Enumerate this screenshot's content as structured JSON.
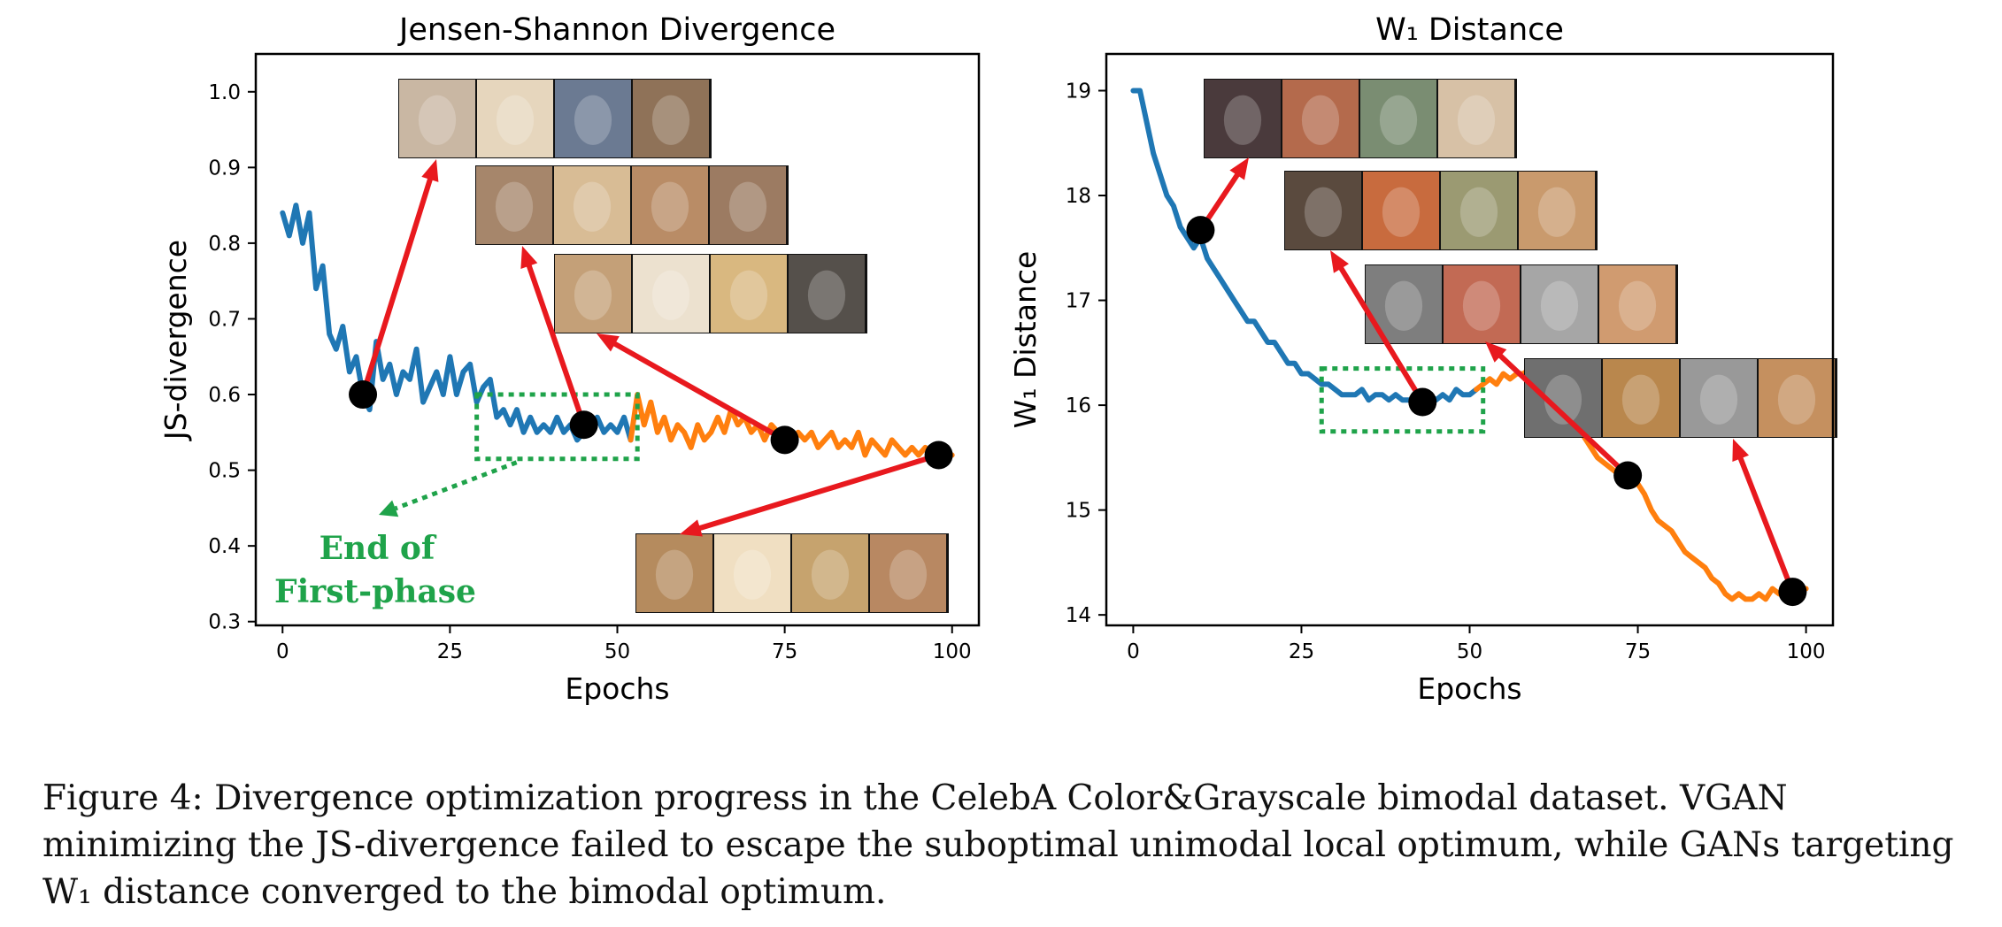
{
  "chart_data": [
    {
      "type": "line",
      "title": "Jensen-Shannon Divergence",
      "xlabel": "Epochs",
      "ylabel": "JS-divergence",
      "xlim": [
        -4,
        104
      ],
      "ylim": [
        0.295,
        1.05
      ],
      "xticks": [
        0,
        25,
        50,
        75,
        100
      ],
      "yticks": [
        0.3,
        0.4,
        0.5,
        0.6,
        0.7,
        0.8,
        0.9,
        1.0
      ],
      "ytick_labels": [
        "0.3",
        "0.4",
        "0.5",
        "0.6",
        "0.7",
        "0.8",
        "0.9",
        "1.0"
      ],
      "grid": false,
      "series": [
        {
          "color": "#1f77b4",
          "x": [
            0,
            1,
            2,
            3,
            4,
            5,
            6,
            7,
            8,
            9,
            10,
            11,
            12,
            13,
            14,
            15,
            16,
            17,
            18,
            19,
            20,
            21,
            22,
            23,
            24,
            25,
            26,
            27,
            28,
            29,
            30,
            31,
            32,
            33,
            34,
            35,
            36,
            37,
            38,
            39,
            40,
            41,
            42,
            43,
            44,
            45,
            46,
            47,
            48,
            49,
            50,
            51,
            52
          ],
          "y": [
            0.84,
            0.81,
            0.85,
            0.8,
            0.84,
            0.74,
            0.77,
            0.68,
            0.66,
            0.69,
            0.63,
            0.65,
            0.6,
            0.58,
            0.67,
            0.62,
            0.64,
            0.6,
            0.63,
            0.62,
            0.66,
            0.59,
            0.61,
            0.63,
            0.6,
            0.65,
            0.6,
            0.63,
            0.64,
            0.59,
            0.61,
            0.62,
            0.57,
            0.58,
            0.56,
            0.58,
            0.55,
            0.57,
            0.55,
            0.56,
            0.55,
            0.57,
            0.55,
            0.56,
            0.54,
            0.55,
            0.56,
            0.57,
            0.55,
            0.56,
            0.55,
            0.57,
            0.54
          ]
        },
        {
          "color": "#ff7f0e",
          "x": [
            52,
            53,
            54,
            55,
            56,
            57,
            58,
            59,
            60,
            61,
            62,
            63,
            64,
            65,
            66,
            67,
            68,
            69,
            70,
            71,
            72,
            73,
            74,
            75,
            76,
            77,
            78,
            79,
            80,
            81,
            82,
            83,
            84,
            85,
            86,
            87,
            88,
            89,
            90,
            91,
            92,
            93,
            94,
            95,
            96,
            97,
            98,
            99,
            100
          ],
          "y": [
            0.54,
            0.6,
            0.56,
            0.59,
            0.55,
            0.57,
            0.54,
            0.56,
            0.55,
            0.53,
            0.56,
            0.54,
            0.55,
            0.57,
            0.55,
            0.58,
            0.56,
            0.57,
            0.55,
            0.56,
            0.54,
            0.56,
            0.55,
            0.55,
            0.53,
            0.55,
            0.54,
            0.55,
            0.53,
            0.54,
            0.55,
            0.53,
            0.54,
            0.53,
            0.55,
            0.52,
            0.54,
            0.53,
            0.52,
            0.54,
            0.53,
            0.52,
            0.53,
            0.52,
            0.53,
            0.52,
            0.53,
            0.52,
            0.52
          ]
        }
      ],
      "markers": [
        {
          "x": 12,
          "y": 0.6
        },
        {
          "x": 45,
          "y": 0.56
        },
        {
          "x": 75,
          "y": 0.54
        },
        {
          "x": 98,
          "y": 0.52
        }
      ],
      "phase_box": {
        "x": [
          29,
          53
        ],
        "y": [
          0.515,
          0.6
        ]
      },
      "annotation_lines": [
        "End of",
        "First-phase"
      ]
    },
    {
      "type": "line",
      "title": "W₁ Distance",
      "xlabel": "Epochs",
      "ylabel": "W₁ Distance",
      "xlim": [
        -4,
        104
      ],
      "ylim": [
        13.9,
        19.35
      ],
      "xticks": [
        0,
        25,
        50,
        75,
        100
      ],
      "yticks": [
        14,
        15,
        16,
        17,
        18,
        19
      ],
      "ytick_labels": [
        "14",
        "15",
        "16",
        "17",
        "18",
        "19"
      ],
      "grid": false,
      "series": [
        {
          "color": "#1f77b4",
          "x": [
            0,
            1,
            2,
            3,
            4,
            5,
            6,
            7,
            8,
            9,
            10,
            11,
            12,
            13,
            14,
            15,
            16,
            17,
            18,
            19,
            20,
            21,
            22,
            23,
            24,
            25,
            26,
            27,
            28,
            29,
            30,
            31,
            32,
            33,
            34,
            35,
            36,
            37,
            38,
            39,
            40,
            41,
            42,
            43,
            44,
            45,
            46,
            47,
            48,
            49,
            50,
            51
          ],
          "y": [
            19.0,
            19.0,
            18.7,
            18.4,
            18.2,
            18.0,
            17.9,
            17.7,
            17.6,
            17.5,
            17.6,
            17.4,
            17.3,
            17.2,
            17.1,
            17.0,
            16.9,
            16.8,
            16.8,
            16.7,
            16.6,
            16.6,
            16.5,
            16.4,
            16.4,
            16.3,
            16.3,
            16.25,
            16.2,
            16.2,
            16.15,
            16.1,
            16.1,
            16.1,
            16.15,
            16.05,
            16.1,
            16.1,
            16.05,
            16.1,
            16.05,
            16.05,
            16.0,
            16.05,
            16.1,
            16.05,
            16.1,
            16.05,
            16.15,
            16.1,
            16.1,
            16.15
          ]
        },
        {
          "color": "#ff7f0e",
          "x": [
            51,
            52,
            53,
            54,
            55,
            56,
            57,
            58,
            59,
            60,
            61,
            62,
            63,
            64,
            65,
            66,
            67,
            68,
            69,
            70,
            71,
            72,
            73,
            74,
            75,
            76,
            77,
            78,
            79,
            80,
            81,
            82,
            83,
            84,
            85,
            86,
            87,
            88,
            89,
            90,
            91,
            92,
            93,
            94,
            95,
            96,
            97,
            98,
            99,
            100
          ],
          "y": [
            16.15,
            16.2,
            16.25,
            16.2,
            16.3,
            16.25,
            16.3,
            16.3,
            16.35,
            16.3,
            16.25,
            16.2,
            16.1,
            16.0,
            15.9,
            15.8,
            15.7,
            15.6,
            15.5,
            15.45,
            15.4,
            15.35,
            15.35,
            15.3,
            15.25,
            15.15,
            15.0,
            14.9,
            14.85,
            14.8,
            14.7,
            14.6,
            14.55,
            14.5,
            14.45,
            14.35,
            14.3,
            14.2,
            14.15,
            14.2,
            14.15,
            14.15,
            14.2,
            14.15,
            14.25,
            14.2,
            14.25,
            14.2,
            14.25,
            14.25
          ]
        }
      ],
      "markers": [
        {
          "x": 10,
          "y": 17.67
        },
        {
          "x": 43,
          "y": 16.03
        },
        {
          "x": 73.5,
          "y": 15.33
        },
        {
          "x": 98,
          "y": 14.22
        }
      ],
      "phase_box": {
        "x": [
          28,
          52
        ],
        "y": [
          15.75,
          16.35
        ]
      }
    }
  ],
  "caption": {
    "text": "Figure 4: Divergence optimization progress in the CelebA Color&Grayscale bimodal dataset. VGAN minimizing the JS-divergence failed to escape the suboptimal unimodal local optimum, while GANs targeting W₁ distance converged to the bimodal optimum."
  },
  "sample_strip_colors": {
    "js": [
      [
        "#c9b7a3",
        "#e6d6bd",
        "#6b7a92",
        "#8f7258"
      ],
      [
        "#a6866b",
        "#d8bc95",
        "#b98c66",
        "#9c7b62"
      ],
      [
        "#c4a078",
        "#ece1cf",
        "#d9b880",
        "#55504b"
      ],
      [
        "#b58b5e",
        "#f0dfc2",
        "#c6a36e",
        "#b88862"
      ]
    ],
    "w1": [
      [
        "#4a3a3c",
        "#b46a4c",
        "#7a8d72",
        "#d7c1a6"
      ],
      [
        "#5a4a3e",
        "#c86b3e",
        "#9b9a72",
        "#c99a6d"
      ],
      [
        "#7e7e7e",
        "#c26a54",
        "#a6a6a6",
        "#d09b70"
      ],
      [
        "#6f6f6f",
        "#b9874d",
        "#999999",
        "#c5905f"
      ]
    ]
  },
  "colors": {
    "blue": "#1f77b4",
    "orange": "#ff7f0e",
    "arrow": "#e8191e",
    "phase": "#1fa34a",
    "marker": "#000000"
  }
}
